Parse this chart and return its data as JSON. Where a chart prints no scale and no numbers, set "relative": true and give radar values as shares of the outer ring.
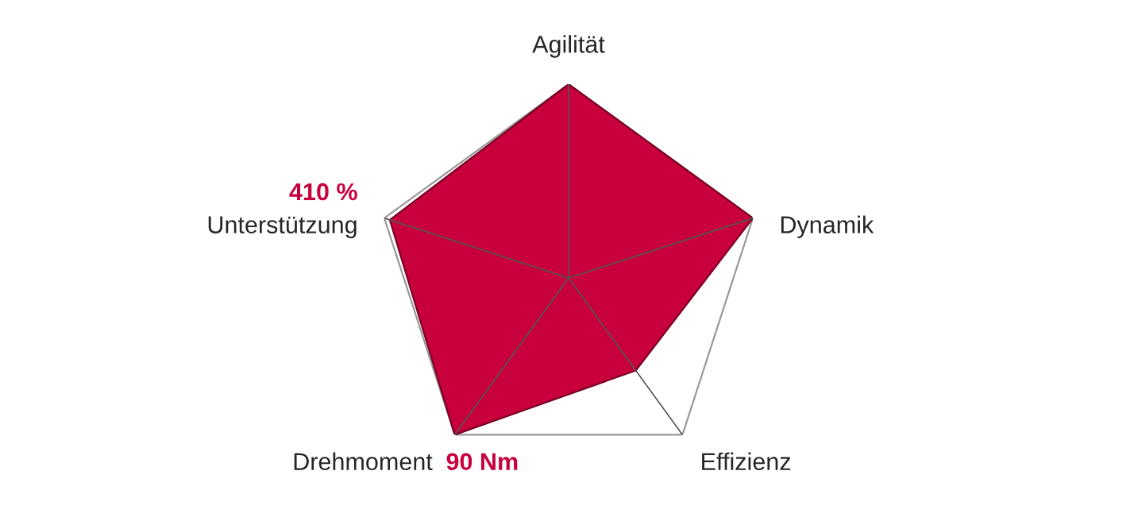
{
  "chart_data": {
    "type": "radar",
    "relative": true,
    "categories": [
      "Agilität",
      "Dynamik",
      "Effizienz",
      "Drehmoment",
      "Unterstützung"
    ],
    "annotations": [
      {
        "text": "90 Nm",
        "x": "Drehmoment"
      },
      {
        "text": "410 %",
        "x": "Unterstützung"
      }
    ],
    "series": [
      {
        "color": "#c8003c",
        "values": [
          1,
          1,
          0.59,
          1,
          0.97
        ]
      }
    ]
  }
}
